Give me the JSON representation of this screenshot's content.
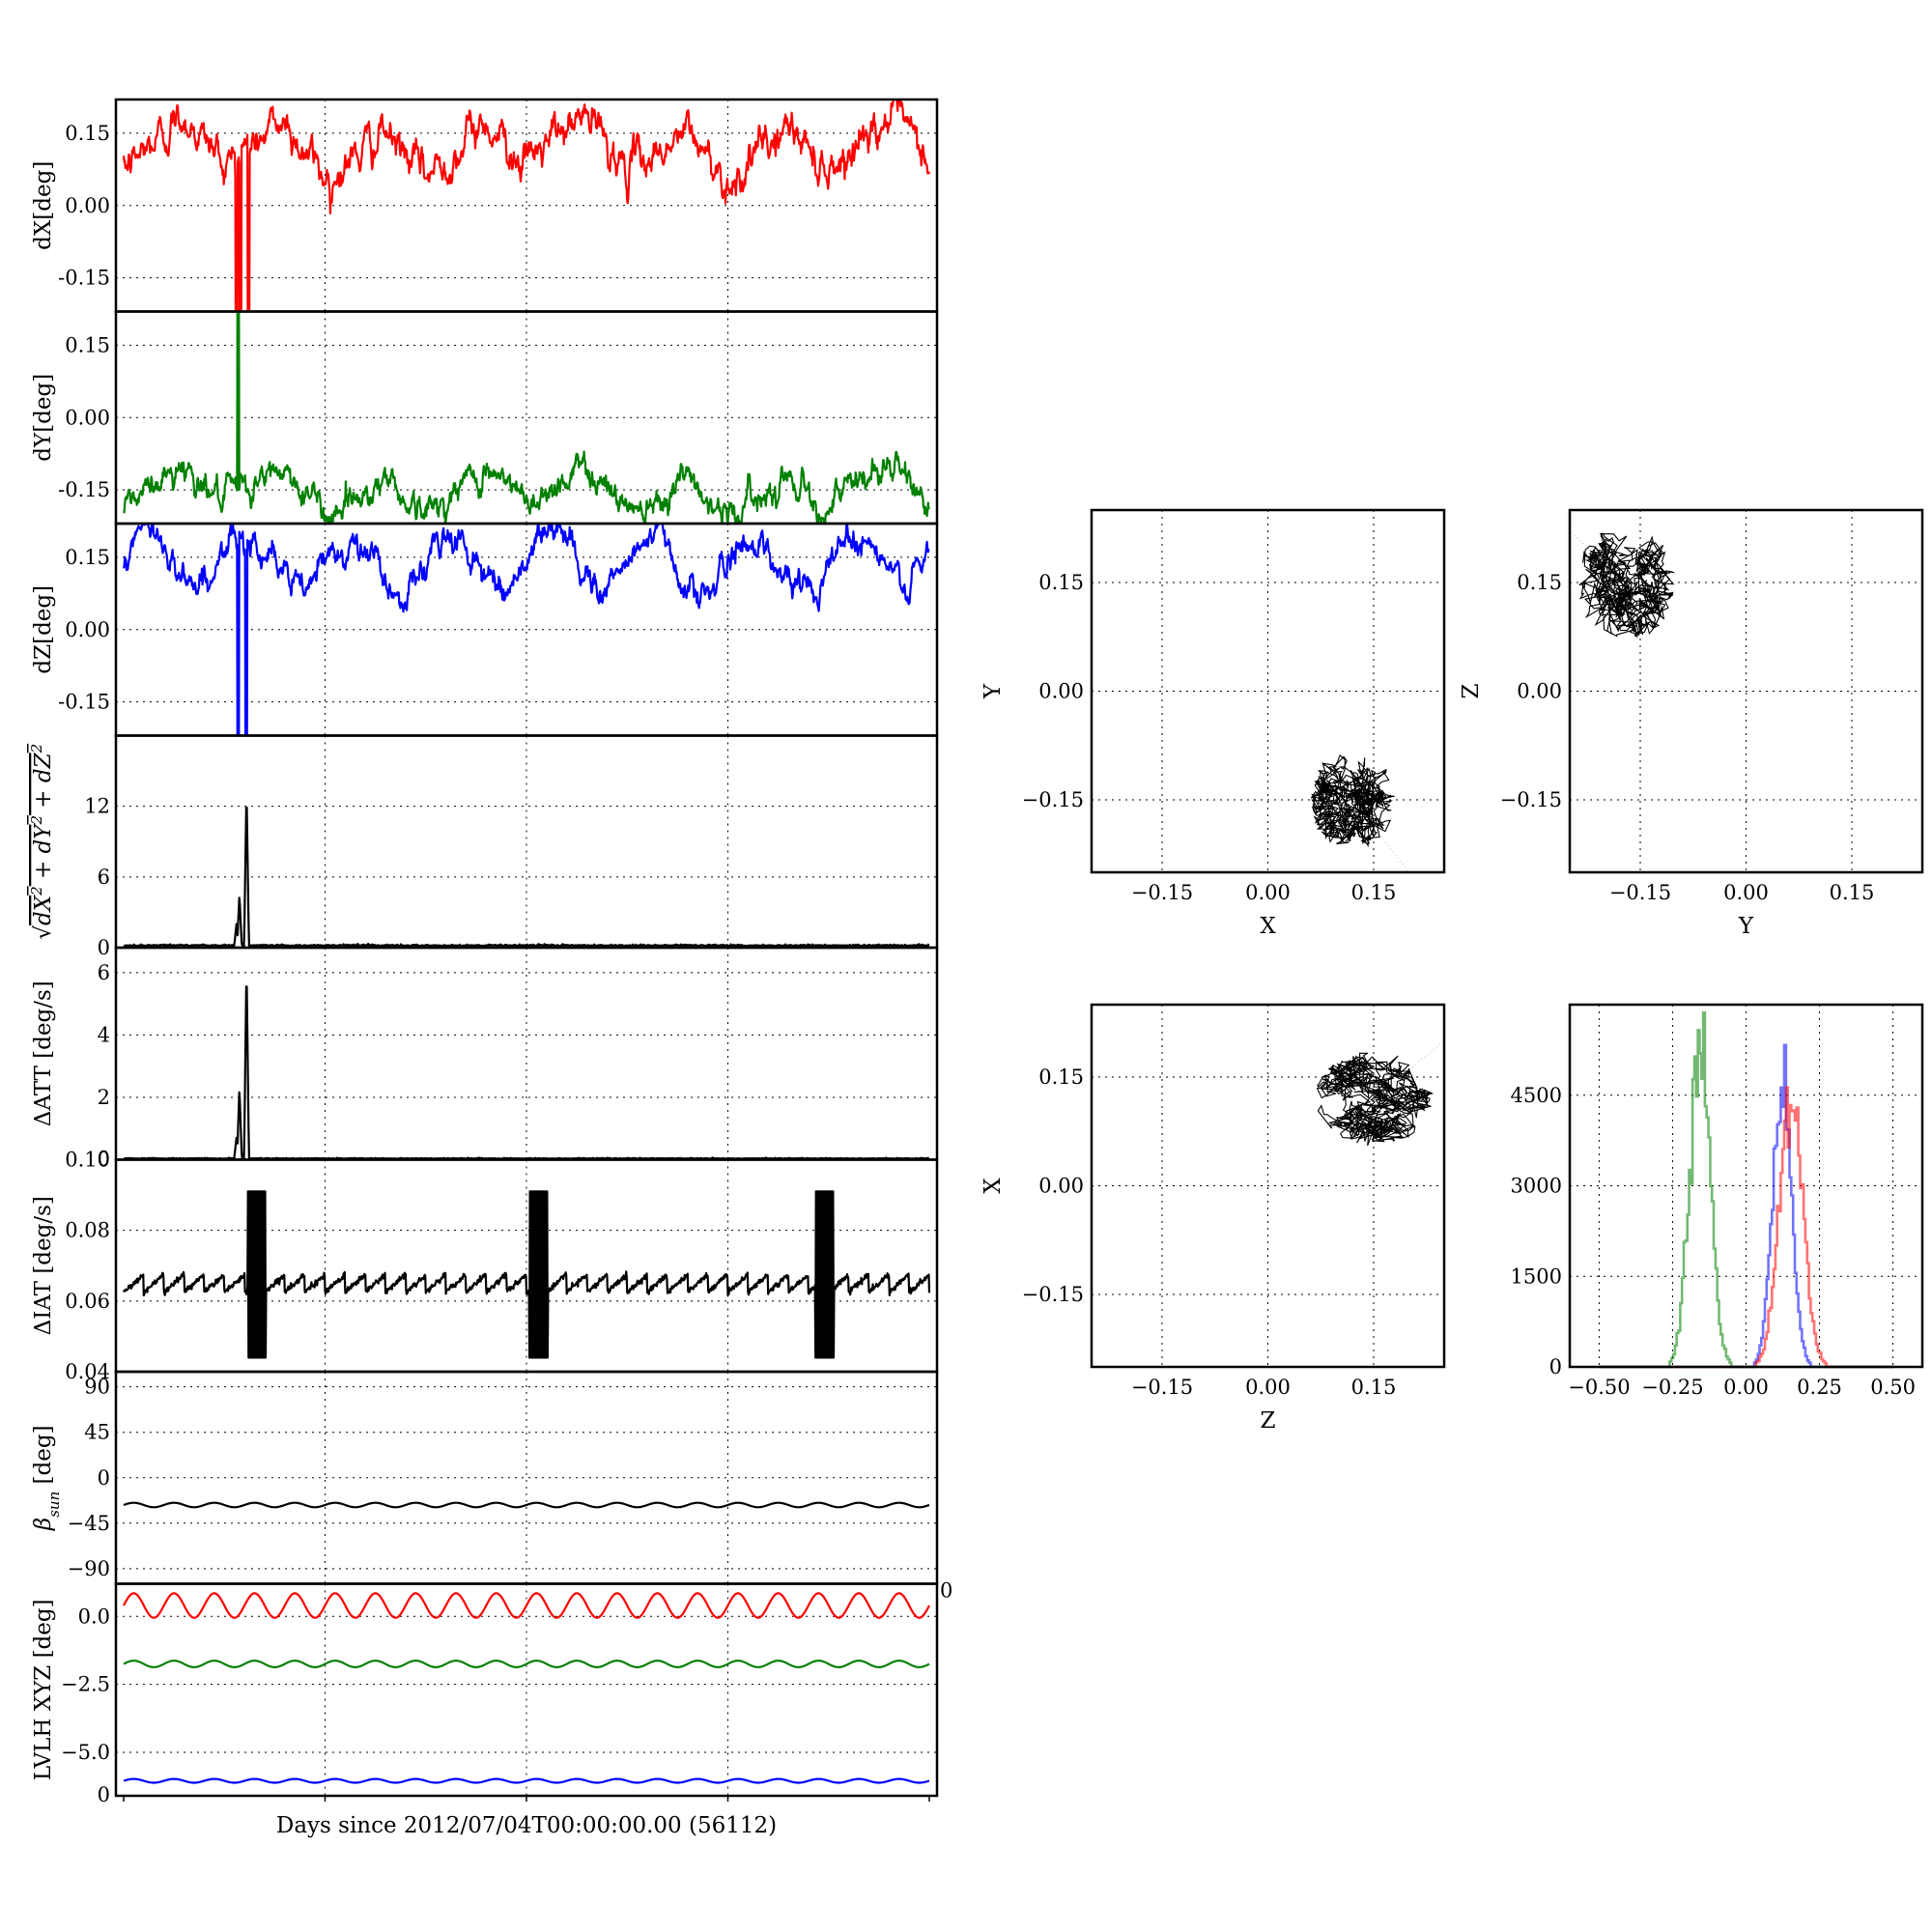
{
  "figure": {
    "xlabel": "Days since 2012/07/04T00:00:00.00 (56112)"
  },
  "chart_data": [
    {
      "type": "line",
      "ylabel": "dX[deg]",
      "ylim": [
        -0.22,
        0.22
      ],
      "yticks": [
        "0.15",
        "0.00",
        "-0.15"
      ],
      "ytick_values": [
        0.15,
        0.0,
        -0.15
      ],
      "grid": true,
      "series": [
        {
          "color": "#ff0000",
          "kind": "dx",
          "base": 0.12,
          "amp": 0.05,
          "period_days": 0.5,
          "trend_amp": 0.02,
          "noise": 0.012,
          "spike_days": [
            0.56,
            0.58,
            0.62
          ],
          "spike_dir": -1,
          "spike_extent": 0.6,
          "n": 1400
        }
      ]
    },
    {
      "type": "line",
      "ylabel": "dY[deg]",
      "ylim": [
        -0.22,
        0.22
      ],
      "yticks": [
        "0.15",
        "0.00",
        "-0.15"
      ],
      "ytick_values": [
        0.15,
        0.0,
        -0.15
      ],
      "grid": true,
      "series": [
        {
          "color": "#008000",
          "kind": "dy",
          "base": -0.15,
          "amp": 0.04,
          "period_days": 0.5,
          "trend_amp": 0.015,
          "noise": 0.01,
          "spike_days": [
            0.57
          ],
          "spike_dir": 1,
          "spike_extent": 0.6,
          "n": 1400
        }
      ]
    },
    {
      "type": "line",
      "ylabel": "dZ[deg]",
      "ylim": [
        -0.22,
        0.22
      ],
      "yticks": [
        "0.15",
        "0.00",
        "-0.15"
      ],
      "ytick_values": [
        0.15,
        0.0,
        -0.15
      ],
      "grid": true,
      "series": [
        {
          "color": "#0000ff",
          "kind": "dz",
          "base": 0.14,
          "amp": 0.055,
          "period_days": 0.5,
          "trend_amp": 0.01,
          "noise": 0.01,
          "spike_days": [
            0.57,
            0.61
          ],
          "spike_dir": -1,
          "spike_extent": 0.6,
          "n": 1400
        }
      ]
    },
    {
      "type": "line",
      "ylabel": "√(dX²+dY²+dZ²)",
      "ylabel_parts": [
        "√",
        "dX",
        "2",
        " + dY",
        "2",
        " + dZ",
        "2"
      ],
      "ylim": [
        0,
        18
      ],
      "yticks": [
        "12",
        "6",
        "0"
      ],
      "ytick_values": [
        12,
        6,
        0
      ],
      "grid": true,
      "series": [
        {
          "color": "#000000",
          "kind": "spikes",
          "baseline": 0.15,
          "noise": 0.05,
          "peaks": [
            [
              0.56,
              2.0
            ],
            [
              0.575,
              4.5
            ],
            [
              0.61,
              13.5
            ]
          ],
          "n": 1400
        }
      ]
    },
    {
      "type": "line",
      "ylabel": "ΔATT [deg/s]",
      "ylim": [
        0,
        6.8
      ],
      "yticks": [
        "6",
        "4",
        "2",
        "0.10"
      ],
      "ytick_values": [
        6,
        4,
        2,
        0
      ],
      "extra_tick_text": "0",
      "grid": true,
      "series": [
        {
          "color": "#000000",
          "kind": "spikes",
          "baseline": 0.03,
          "noise": 0.01,
          "peaks": [
            [
              0.56,
              0.7
            ],
            [
              0.575,
              2.3
            ],
            [
              0.61,
              6.3
            ]
          ],
          "n": 1400
        }
      ]
    },
    {
      "type": "line",
      "ylabel": "ΔIAT [deg/s]",
      "ylim": [
        0.04,
        0.1
      ],
      "yticks": [
        "0.08",
        "0.06",
        "0.04"
      ],
      "ytick_values": [
        0.08,
        0.06,
        0.04
      ],
      "grid": true,
      "series": [
        {
          "color": "#000000",
          "kind": "sawtooth",
          "base": 0.065,
          "amp": 0.0025,
          "period_days": 0.1,
          "burst_days": [
            0.66,
            2.06,
            3.48
          ],
          "burst_low": 0.044,
          "burst_high": 0.091,
          "n": 1600
        }
      ]
    },
    {
      "type": "line",
      "ylabel": "β_sun [deg]",
      "ylabel_parts": [
        "β",
        "sun",
        " [deg]"
      ],
      "ylim": [
        -105,
        105
      ],
      "yticks": [
        "90",
        "45",
        "0",
        "−45",
        "−90"
      ],
      "ytick_values": [
        90,
        45,
        0,
        -45,
        -90
      ],
      "grid": true,
      "series": [
        {
          "color": "#000000",
          "kind": "sine",
          "base": -27,
          "amp": 2.2,
          "period_days": 0.2,
          "n": 1200
        }
      ]
    },
    {
      "type": "line",
      "ylabel": "LVLH XYZ [deg]",
      "ylim": [
        -6.6,
        1.2
      ],
      "yticks": [
        "0.0",
        "−2.5",
        "−5.0"
      ],
      "ytick_values": [
        0.0,
        -2.5,
        -5.0
      ],
      "extra_tick_text": "0",
      "grid": true,
      "series": [
        {
          "color": "#ff0000",
          "kind": "sine",
          "base": 0.4,
          "amp": 0.45,
          "period_days": 0.2,
          "n": 1200
        },
        {
          "color": "#008000",
          "kind": "sine",
          "base": -1.75,
          "amp": 0.12,
          "period_days": 0.2,
          "n": 1200
        },
        {
          "color": "#0000ff",
          "kind": "sine",
          "base": -6.05,
          "amp": 0.07,
          "period_days": 0.2,
          "n": 1200
        }
      ]
    },
    {
      "type": "scatter",
      "xlabel": "X",
      "ylabel": "Y",
      "xlim": [
        -0.25,
        0.25
      ],
      "ylim": [
        -0.25,
        0.25
      ],
      "xticks": [
        "−0.15",
        "0.00",
        "0.15"
      ],
      "yticks": [
        "0.15",
        "0.00",
        "−0.15"
      ],
      "tick_values": [
        -0.15,
        0.0,
        0.15
      ],
      "grid": true,
      "cluster": {
        "cx": 0.12,
        "cy": -0.15,
        "rx": 0.06,
        "ry": 0.07,
        "n": 900
      }
    },
    {
      "type": "scatter",
      "xlabel": "Y",
      "ylabel": "Z",
      "xlim": [
        -0.25,
        0.25
      ],
      "ylim": [
        -0.25,
        0.25
      ],
      "xticks": [
        "−0.15",
        "0.00",
        "0.15"
      ],
      "yticks": [
        "0.15",
        "0.00",
        "−0.15"
      ],
      "tick_values": [
        -0.15,
        0.0,
        0.15
      ],
      "grid": true,
      "cluster": {
        "cx": -0.17,
        "cy": 0.15,
        "rx": 0.07,
        "ry": 0.08,
        "n": 900
      }
    },
    {
      "type": "scatter",
      "xlabel": "Z",
      "ylabel": "X",
      "xlim": [
        -0.25,
        0.25
      ],
      "ylim": [
        -0.25,
        0.25
      ],
      "xticks": [
        "−0.15",
        "0.00",
        "0.15"
      ],
      "yticks": [
        "0.15",
        "0.00",
        "−0.15"
      ],
      "tick_values": [
        -0.15,
        0.0,
        0.15
      ],
      "grid": true,
      "cluster": {
        "cx": 0.15,
        "cy": 0.12,
        "rx": 0.085,
        "ry": 0.065,
        "n": 900
      }
    },
    {
      "type": "histogram",
      "xlim": [
        -0.6,
        0.6
      ],
      "ylim": [
        0,
        6000
      ],
      "xticks": [
        "−0.50",
        "−0.25",
        "0.00",
        "0.25",
        "0.50"
      ],
      "xtick_values": [
        -0.5,
        -0.25,
        0.0,
        0.25,
        0.5
      ],
      "yticks": [
        "4500",
        "3000",
        "1500",
        "0"
      ],
      "ytick_values": [
        4500,
        3000,
        1500,
        0
      ],
      "grid": true,
      "series": [
        {
          "color": "#008000",
          "center": -0.16,
          "width": 0.035,
          "peak": 5400
        },
        {
          "color": "#0000ff",
          "center": 0.12,
          "width": 0.032,
          "peak": 4800
        },
        {
          "color": "#ff0000",
          "center": 0.15,
          "width": 0.04,
          "peak": 4500
        }
      ]
    }
  ]
}
